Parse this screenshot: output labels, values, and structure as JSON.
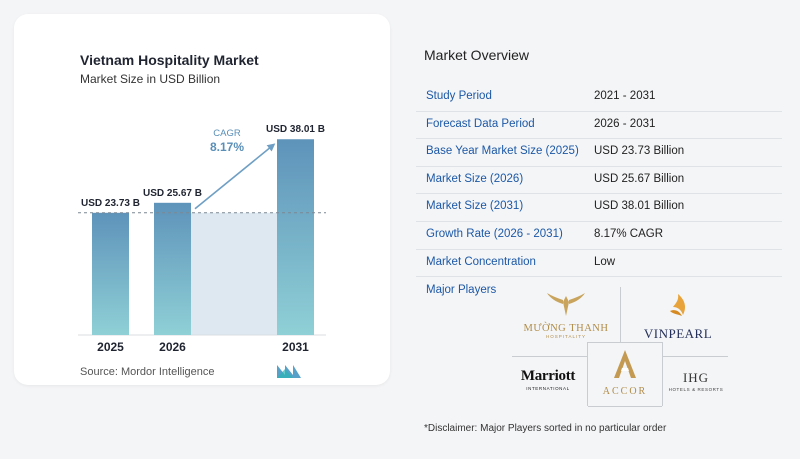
{
  "chart_data": {
    "type": "bar",
    "title": "Vietnam Hospitality Market",
    "subtitle": "Market Size in USD Billion",
    "categories": [
      "2025",
      "2026",
      "2031"
    ],
    "values": [
      23.73,
      25.67,
      38.01
    ],
    "value_labels": [
      "USD 23.73 B",
      "USD 25.67 B",
      "USD 38.01 B"
    ],
    "ylim": [
      0,
      40
    ],
    "grid": false,
    "annotation": {
      "label": "CAGR",
      "value": "8.17%"
    },
    "colors": {
      "bar_top": "#5e93ba",
      "bar_bottom": "#8fd0d6",
      "band": "#dde8f1",
      "arrow": "#6f9fc4",
      "cagr_text": "#5a8fb8"
    }
  },
  "source": "Source:  Mordor Intelligence",
  "overview": {
    "title": "Market Overview",
    "rows": [
      {
        "label": "Study Period",
        "value": "2021 - 2031"
      },
      {
        "label": "Forecast Data Period",
        "value": "2026 - 2031"
      },
      {
        "label": "Base Year Market Size (2025)",
        "value": "USD 23.73 Billion"
      },
      {
        "label": "Market Size (2026)",
        "value": "USD 25.67 Billion"
      },
      {
        "label": "Market Size (2031)",
        "value": "USD 38.01 Billion"
      },
      {
        "label": "Growth Rate (2026 - 2031)",
        "value": "8.17% CAGR"
      },
      {
        "label": "Market Concentration",
        "value": "Low"
      }
    ],
    "players_title": "Major Players"
  },
  "players": {
    "muong_thanh": {
      "name": "MƯỜNG THANH",
      "tag": "HOSPITALITY"
    },
    "vinpearl": {
      "name": "VINPEARL"
    },
    "marriott": {
      "name": "Marriott",
      "tag": "INTERNATIONAL"
    },
    "accor": {
      "name": "ACCOR"
    },
    "ihg": {
      "name": "IHG",
      "tag": "HOTELS & RESORTS"
    }
  },
  "disclaimer": "*Disclaimer: Major Players sorted in no particular order"
}
